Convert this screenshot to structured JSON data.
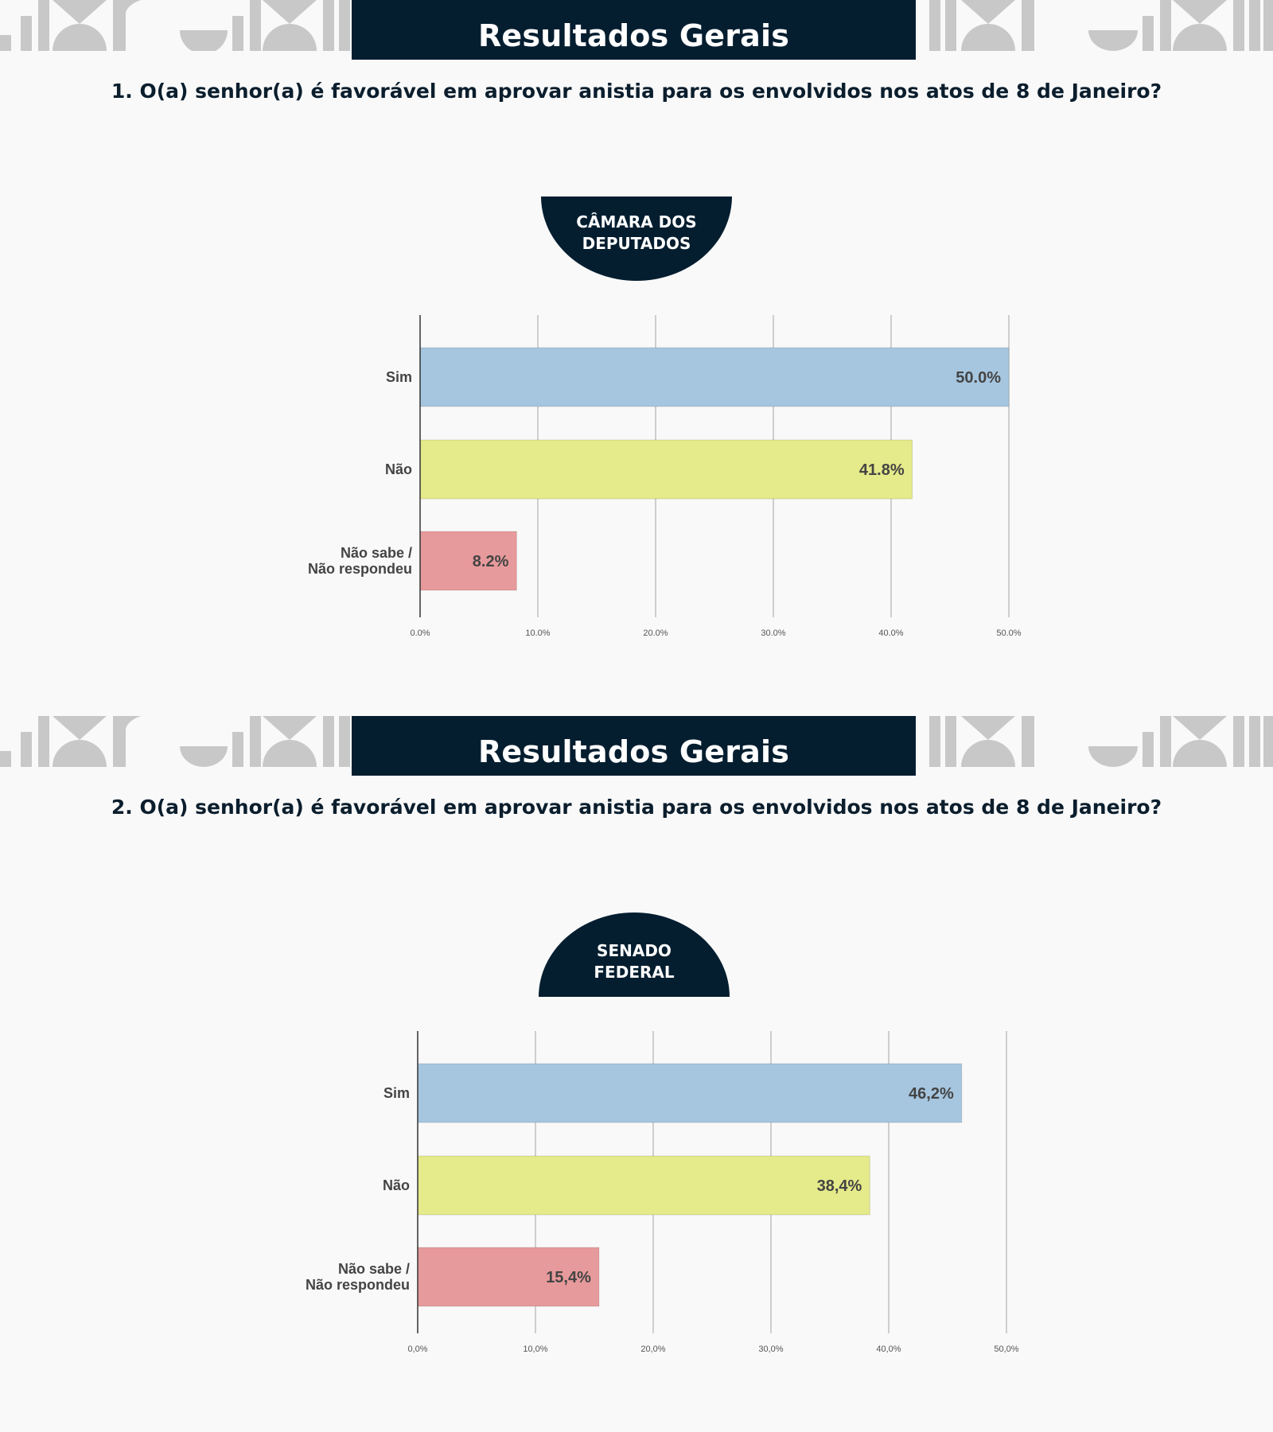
{
  "colors": {
    "navy": "#041e30",
    "pattern": "#c8c8c8",
    "bar_sim": "#a6c6e0",
    "bar_nao": "#e5ea8a",
    "bar_ns": "#e79a9b",
    "axis": "#333333",
    "grid": "#bfbfbf",
    "label": "#444444"
  },
  "sections": [
    {
      "header_title": "Resultados Gerais",
      "question": "1. O(a) senhor(a) é favorável em aprovar anistia para os envolvidos nos atos de 8 de Janeiro?",
      "tag_line1": "CÂMARA DOS",
      "tag_line2": "DEPUTADOS",
      "chart_data": {
        "type": "bar",
        "orientation": "horizontal",
        "categories": [
          [
            "Sim"
          ],
          [
            "Não"
          ],
          [
            "Não sabe /",
            "Não respondeu"
          ]
        ],
        "values": [
          50.0,
          41.8,
          8.2
        ],
        "value_labels": [
          "50.0%",
          "41.8%",
          "8.2%"
        ],
        "xticks": [
          "0.0%",
          "10.0%",
          "20.0%",
          "30.0%",
          "40.0%",
          "50.0%"
        ],
        "xlim": [
          0,
          50
        ],
        "grid": true
      }
    },
    {
      "header_title": "Resultados Gerais",
      "question": "2. O(a) senhor(a) é favorável em aprovar anistia para os envolvidos nos atos de 8 de Janeiro?",
      "tag_line1": "SENADO",
      "tag_line2": "FEDERAL",
      "chart_data": {
        "type": "bar",
        "orientation": "horizontal",
        "categories": [
          [
            "Sim"
          ],
          [
            "Não"
          ],
          [
            "Não sabe /",
            "Não respondeu"
          ]
        ],
        "values": [
          46.2,
          38.4,
          15.4
        ],
        "value_labels": [
          "46,2%",
          "38,4%",
          "15,4%"
        ],
        "xticks": [
          "0,0%",
          "10,0%",
          "20,0%",
          "30,0%",
          "40,0%",
          "50,0%"
        ],
        "xlim": [
          0,
          50
        ],
        "grid": true
      }
    }
  ]
}
